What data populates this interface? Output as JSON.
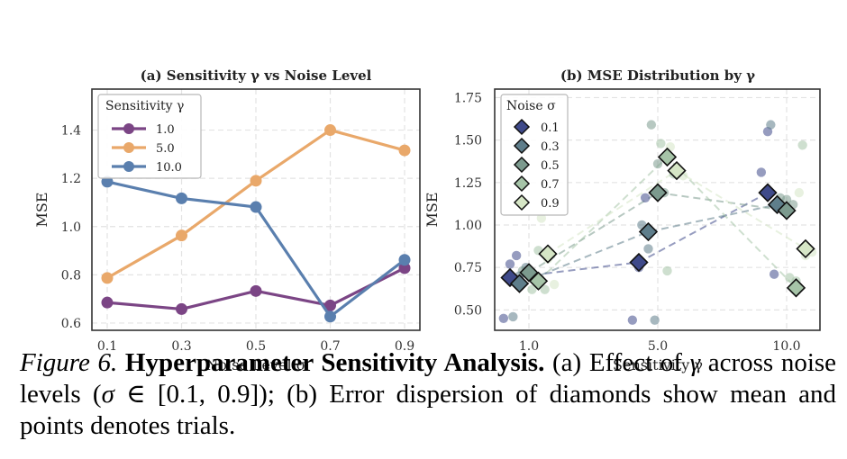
{
  "chart_data": [
    {
      "type": "line",
      "title": "(a) Sensitivity γ vs Noise Level",
      "xlabel": "Noise Level σ",
      "ylabel": "MSE",
      "x": [
        "0.1",
        "0.3",
        "0.5",
        "0.7",
        "0.9"
      ],
      "ylim": [
        0.57,
        1.57
      ],
      "yticks": [
        "0.6",
        "0.8",
        "1.0",
        "1.2",
        "1.4"
      ],
      "grid": true,
      "legend": {
        "title": "Sensitivity γ",
        "placement": "top-left"
      },
      "series": [
        {
          "name": "1.0",
          "color": "#7b4585",
          "values": [
            0.685,
            0.658,
            0.733,
            0.673,
            0.828
          ]
        },
        {
          "name": "5.0",
          "color": "#e9a86a",
          "values": [
            0.787,
            0.963,
            1.19,
            1.4,
            1.316
          ]
        },
        {
          "name": "10.0",
          "color": "#5a7fae",
          "values": [
            1.186,
            1.117,
            1.081,
            0.627,
            0.862
          ]
        }
      ]
    },
    {
      "type": "scatter",
      "title": "(b) MSE Distribution by γ",
      "xlabel": "Sensitivity γ",
      "ylabel": "MSE",
      "categories": [
        "1.0",
        "5.0",
        "10.0"
      ],
      "ylim": [
        0.38,
        1.8
      ],
      "yticks": [
        "0.50",
        "0.75",
        "1.00",
        "1.25",
        "1.50",
        "1.75"
      ],
      "grid": true,
      "legend": {
        "title": "Noise σ",
        "placement": "top-left"
      },
      "series": [
        {
          "name": "0.1",
          "color": "#3f4a8a",
          "mean": [
            0.69,
            0.78,
            1.19
          ],
          "trials": [
            [
              0.45,
              0.77,
              0.82
            ],
            [
              0.44,
              0.75,
              1.16
            ],
            [
              1.31,
              1.55,
              0.71
            ]
          ]
        },
        {
          "name": "0.3",
          "color": "#5f7e8b",
          "mean": [
            0.655,
            0.96,
            1.12
          ],
          "trials": [
            [
              0.46,
              0.7,
              0.75
            ],
            [
              1.0,
              0.86,
              0.44
            ],
            [
              1.59,
              1.1,
              1.08
            ]
          ]
        },
        {
          "name": "0.5",
          "color": "#7c9a8e",
          "mean": [
            0.72,
            1.19,
            1.085
          ],
          "trials": [
            [
              0.73,
              0.71,
              0.7
            ],
            [
              1.59,
              1.36,
              1.19
            ],
            [
              1.16,
              1.15,
              1.12
            ]
          ]
        },
        {
          "name": "0.7",
          "color": "#a6c4a8",
          "mean": [
            0.67,
            1.4,
            0.63
          ],
          "trials": [
            [
              0.62,
              0.85,
              0.62
            ],
            [
              1.48,
              0.73,
              1.3
            ],
            [
              0.69,
              0.67,
              1.47
            ]
          ]
        },
        {
          "name": "0.9",
          "color": "#d6e6c6",
          "mean": [
            0.83,
            1.32,
            0.86
          ],
          "trials": [
            [
              1.04,
              0.8,
              0.65
            ],
            [
              1.46,
              1.32,
              1.29
            ],
            [
              1.19,
              0.82,
              0.84
            ]
          ]
        }
      ]
    }
  ],
  "caption": {
    "figure_number": "Figure 6.",
    "title": "Hyperparameter Sensitivity Analysis.",
    "line1": "(a) Effect of",
    "line2_gamma": "γ",
    "line2_a": "across noise levels (",
    "line2_sigma": "σ",
    "line2_b": "∈ [0.1, 0.9]); (b) Error dispersion of",
    "line3": "diamonds show mean and points denotes trials."
  }
}
